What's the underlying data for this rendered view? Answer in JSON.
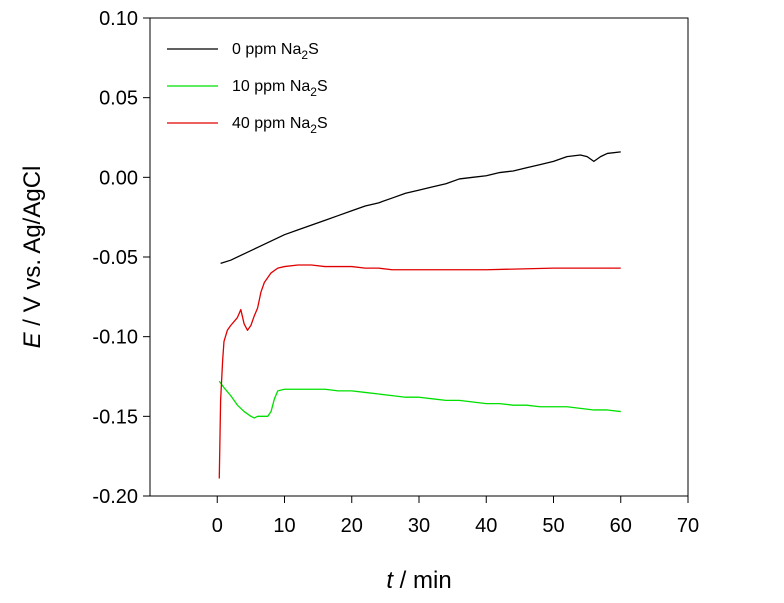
{
  "chart_data": {
    "type": "line",
    "xlabel": {
      "symbol": "t",
      "rest": " / min"
    },
    "ylabel": {
      "symbol": "E",
      "rest": " / V vs. Ag/AgCl"
    },
    "xlim": [
      -10,
      70
    ],
    "ylim": [
      -0.2,
      0.1
    ],
    "xticks": [
      0,
      10,
      20,
      30,
      40,
      50,
      60,
      70
    ],
    "xtick_labels": [
      "0",
      "10",
      "20",
      "30",
      "40",
      "50",
      "60",
      "70"
    ],
    "yticks": [
      0.1,
      0.05,
      0.0,
      -0.05,
      -0.1,
      -0.15,
      -0.2
    ],
    "ytick_labels": [
      "0.10",
      "0.05",
      "0.00",
      "-0.05",
      "-0.10",
      "-0.15",
      "-0.20"
    ],
    "grid": false,
    "legend_position": "top-left",
    "series": [
      {
        "name": "0 ppm Na2S",
        "legend": {
          "pre": "0 ppm Na",
          "sub": "2",
          "post": "S"
        },
        "color": "#000000",
        "x": [
          0.5,
          2,
          4,
          6,
          8,
          10,
          12,
          14,
          16,
          18,
          20,
          22,
          24,
          26,
          28,
          30,
          32,
          34,
          36,
          38,
          40,
          42,
          44,
          46,
          48,
          50,
          52,
          54,
          55,
          56,
          57,
          58,
          60
        ],
        "y": [
          -0.054,
          -0.052,
          -0.048,
          -0.044,
          -0.04,
          -0.036,
          -0.033,
          -0.03,
          -0.027,
          -0.024,
          -0.021,
          -0.018,
          -0.016,
          -0.013,
          -0.01,
          -0.008,
          -0.006,
          -0.004,
          -0.001,
          0.0,
          0.001,
          0.003,
          0.004,
          0.006,
          0.008,
          0.01,
          0.013,
          0.014,
          0.013,
          0.01,
          0.013,
          0.015,
          0.016
        ]
      },
      {
        "name": "10 ppm Na2S",
        "legend": {
          "pre": "10 ppm Na",
          "sub": "2",
          "post": "S"
        },
        "color": "#00e000",
        "x": [
          0.3,
          1,
          2,
          3,
          4,
          5,
          5.5,
          6,
          7,
          7.5,
          8,
          8.5,
          9,
          10,
          12,
          14,
          16,
          18,
          20,
          22,
          24,
          26,
          28,
          30,
          32,
          34,
          36,
          38,
          40,
          42,
          44,
          46,
          48,
          50,
          52,
          54,
          56,
          58,
          60
        ],
        "y": [
          -0.128,
          -0.132,
          -0.137,
          -0.143,
          -0.147,
          -0.15,
          -0.151,
          -0.15,
          -0.15,
          -0.15,
          -0.147,
          -0.139,
          -0.134,
          -0.133,
          -0.133,
          -0.133,
          -0.133,
          -0.134,
          -0.134,
          -0.135,
          -0.136,
          -0.137,
          -0.138,
          -0.138,
          -0.139,
          -0.14,
          -0.14,
          -0.141,
          -0.142,
          -0.142,
          -0.143,
          -0.143,
          -0.144,
          -0.144,
          -0.144,
          -0.145,
          -0.146,
          -0.146,
          -0.147
        ]
      },
      {
        "name": "40 ppm Na2S",
        "legend": {
          "pre": "40 ppm Na",
          "sub": "2",
          "post": "S"
        },
        "color": "#e00000",
        "x": [
          0.3,
          0.5,
          0.8,
          1,
          1.5,
          2,
          3,
          3.5,
          4,
          4.5,
          5,
          5.5,
          6,
          6.5,
          7,
          8,
          9,
          10,
          12,
          14,
          16,
          18,
          20,
          22,
          24,
          26,
          28,
          30,
          40,
          50,
          60
        ],
        "y": [
          -0.189,
          -0.14,
          -0.115,
          -0.103,
          -0.096,
          -0.093,
          -0.088,
          -0.083,
          -0.092,
          -0.096,
          -0.093,
          -0.087,
          -0.082,
          -0.072,
          -0.066,
          -0.06,
          -0.057,
          -0.056,
          -0.055,
          -0.055,
          -0.056,
          -0.056,
          -0.056,
          -0.057,
          -0.057,
          -0.058,
          -0.058,
          -0.058,
          -0.058,
          -0.057,
          -0.057
        ]
      }
    ]
  }
}
